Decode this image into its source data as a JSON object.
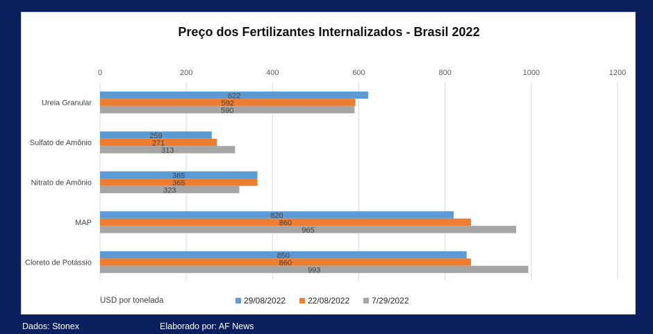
{
  "footer": {
    "source": "Dados: Stonex",
    "author": "Elaborado por: AF News"
  },
  "chart_data": {
    "type": "bar",
    "orientation": "horizontal",
    "title": "Preço dos Fertilizantes Internalizados  - Brasil 2022",
    "xlabel": "USD por tonelada",
    "xlim": [
      0,
      1200
    ],
    "xticks": [
      0,
      200,
      400,
      600,
      800,
      1000,
      1200
    ],
    "x_axis_position": "top",
    "grid": "vertical",
    "legend_position": "bottom",
    "categories": [
      "Ureia Granular",
      "Sulfato de Amônio",
      "Nitrato de Amônio",
      "MAP",
      "Cloreto de Potássio"
    ],
    "series": [
      {
        "name": "29/08/2022",
        "color": "#5b9bd5",
        "values": [
          622,
          259,
          365,
          820,
          850
        ]
      },
      {
        "name": "22/08/2022",
        "color": "#ed7d31",
        "values": [
          592,
          271,
          365,
          860,
          860
        ]
      },
      {
        "name": "7/29/2022",
        "color": "#a5a5a5",
        "values": [
          590,
          313,
          323,
          965,
          993
        ]
      }
    ]
  }
}
